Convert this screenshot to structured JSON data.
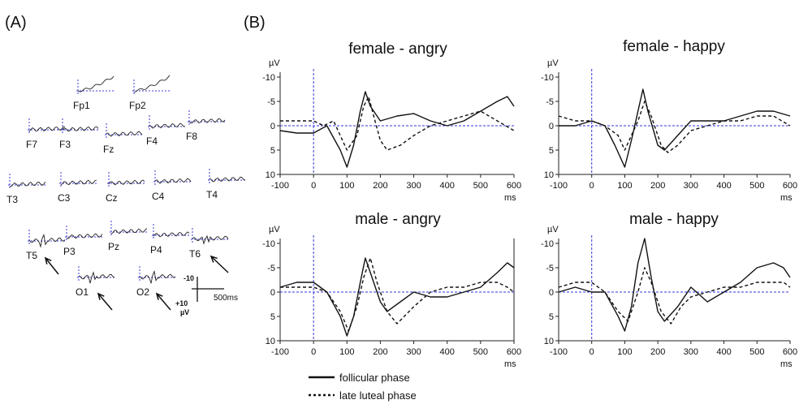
{
  "panels": {
    "a": "(A)",
    "b": "(B)"
  },
  "electrodes": [
    "Fp1",
    "Fp2",
    "F7",
    "F3",
    "Fz",
    "F4",
    "F8",
    "T3",
    "C3",
    "Cz",
    "C4",
    "T4",
    "T5",
    "P3",
    "Pz",
    "P4",
    "T6",
    "O1",
    "O2"
  ],
  "scalebar": {
    "top_label": "-10",
    "bottom_label": "+10",
    "unit": "µV",
    "time_label": "500ms"
  },
  "legend": {
    "solid_label": "follicular phase",
    "dashed_label": "late luteal phase"
  },
  "chart_data": [
    {
      "type": "line",
      "title": "female - angry",
      "ylabel": "µV",
      "xlabel": "ms",
      "ylim": [
        10,
        -10
      ],
      "xlim": [
        -100,
        600
      ],
      "yticks": [
        "-10",
        "-5",
        "0",
        "5",
        "10"
      ],
      "xticks": [
        "-100",
        "0",
        "100",
        "200",
        "300",
        "400",
        "500",
        "600"
      ],
      "series": [
        {
          "name": "follicular phase",
          "style": "solid",
          "x": [
            -100,
            -50,
            0,
            40,
            80,
            100,
            120,
            140,
            155,
            170,
            200,
            250,
            300,
            350,
            400,
            450,
            500,
            550,
            580,
            600
          ],
          "y": [
            1,
            1.5,
            1.5,
            0,
            5,
            8.5,
            4,
            -3,
            -7,
            -4,
            -1,
            -2,
            -2.5,
            -1,
            0,
            -1,
            -3,
            -5,
            -6,
            -4
          ]
        },
        {
          "name": "late luteal phase",
          "style": "dashed",
          "x": [
            -100,
            -50,
            0,
            30,
            60,
            100,
            130,
            150,
            165,
            180,
            200,
            220,
            260,
            300,
            350,
            400,
            450,
            500,
            550,
            600
          ],
          "y": [
            -1,
            -1,
            -1,
            0,
            -1,
            5,
            2,
            -4,
            -6,
            -2,
            3,
            5,
            4,
            2,
            0,
            -1,
            -2,
            -3,
            -1,
            1
          ]
        }
      ]
    },
    {
      "type": "line",
      "title": "female - happy",
      "ylabel": "µV",
      "xlabel": "ms",
      "ylim": [
        10,
        -10
      ],
      "xlim": [
        -100,
        600
      ],
      "yticks": [
        "-10",
        "-5",
        "0",
        "5",
        "10"
      ],
      "xticks": [
        "-100",
        "0",
        "100",
        "200",
        "300",
        "400",
        "500",
        "600"
      ],
      "series": [
        {
          "name": "follicular phase",
          "style": "solid",
          "x": [
            -100,
            -50,
            0,
            40,
            70,
            100,
            120,
            140,
            155,
            170,
            200,
            220,
            260,
            300,
            350,
            400,
            450,
            500,
            550,
            600
          ],
          "y": [
            0,
            0,
            -1,
            0,
            4,
            8.5,
            3,
            -3,
            -7.5,
            -3,
            4,
            5,
            2,
            -1,
            -1,
            -1,
            -2,
            -3,
            -3,
            -2
          ]
        },
        {
          "name": "late luteal phase",
          "style": "dashed",
          "x": [
            -100,
            -50,
            0,
            40,
            80,
            100,
            120,
            140,
            160,
            180,
            210,
            230,
            260,
            300,
            350,
            400,
            450,
            500,
            550,
            600
          ],
          "y": [
            -2,
            -1,
            -1,
            0,
            2,
            5,
            2,
            -1,
            -5,
            -2,
            4,
            5.5,
            4,
            1,
            0,
            -1,
            -1,
            -2,
            -2,
            0
          ]
        }
      ]
    },
    {
      "type": "line",
      "title": "male - angry",
      "ylabel": "µV",
      "xlabel": "ms",
      "ylim": [
        10,
        -10
      ],
      "xlim": [
        -100,
        600
      ],
      "yticks": [
        "-10",
        "-5",
        "0",
        "5",
        "10"
      ],
      "xticks": [
        "-100",
        "0",
        "100",
        "200",
        "300",
        "400",
        "500",
        "600"
      ],
      "series": [
        {
          "name": "follicular phase",
          "style": "solid",
          "x": [
            -100,
            -50,
            0,
            40,
            80,
            100,
            120,
            140,
            155,
            170,
            200,
            220,
            260,
            300,
            350,
            400,
            450,
            500,
            550,
            580,
            600
          ],
          "y": [
            -1,
            -2,
            -2,
            0,
            5,
            9,
            5,
            -2,
            -7,
            -4,
            2,
            4,
            2,
            0,
            1,
            1,
            0,
            -1,
            -4,
            -6,
            -5
          ]
        },
        {
          "name": "late luteal phase",
          "style": "dashed",
          "x": [
            -100,
            -50,
            0,
            40,
            80,
            105,
            130,
            150,
            170,
            190,
            220,
            250,
            300,
            350,
            400,
            450,
            500,
            550,
            580,
            600
          ],
          "y": [
            -1,
            -1,
            -1,
            0,
            4,
            8,
            3,
            -3,
            -7,
            -2,
            4,
            6.5,
            3,
            0,
            -1,
            -1,
            -2,
            -2,
            -1,
            0
          ]
        }
      ]
    },
    {
      "type": "line",
      "title": "male - happy",
      "ylabel": "µV",
      "xlabel": "ms",
      "ylim": [
        10,
        -10
      ],
      "xlim": [
        -100,
        600
      ],
      "yticks": [
        "-10",
        "-5",
        "0",
        "5",
        "10"
      ],
      "xticks": [
        "-100",
        "0",
        "100",
        "200",
        "300",
        "400",
        "500",
        "600"
      ],
      "series": [
        {
          "name": "follicular phase",
          "style": "solid",
          "x": [
            -100,
            -50,
            0,
            40,
            80,
            100,
            120,
            140,
            160,
            180,
            200,
            220,
            260,
            300,
            350,
            400,
            450,
            500,
            550,
            580,
            600
          ],
          "y": [
            0,
            -1,
            0,
            0,
            5,
            8,
            3,
            -6,
            -11,
            -3,
            4,
            6,
            3,
            -1,
            2,
            0,
            -2,
            -5,
            -6,
            -5,
            -3
          ]
        },
        {
          "name": "late luteal phase",
          "style": "dashed",
          "x": [
            -100,
            -50,
            0,
            40,
            80,
            110,
            140,
            160,
            180,
            210,
            240,
            270,
            300,
            350,
            400,
            450,
            500,
            550,
            580,
            600
          ],
          "y": [
            -1,
            -2,
            -2,
            0,
            4,
            6,
            0,
            -5,
            -2,
            4,
            6.5,
            3,
            1,
            0,
            -1,
            -1,
            -2,
            -2,
            -2,
            -1
          ]
        }
      ]
    }
  ]
}
